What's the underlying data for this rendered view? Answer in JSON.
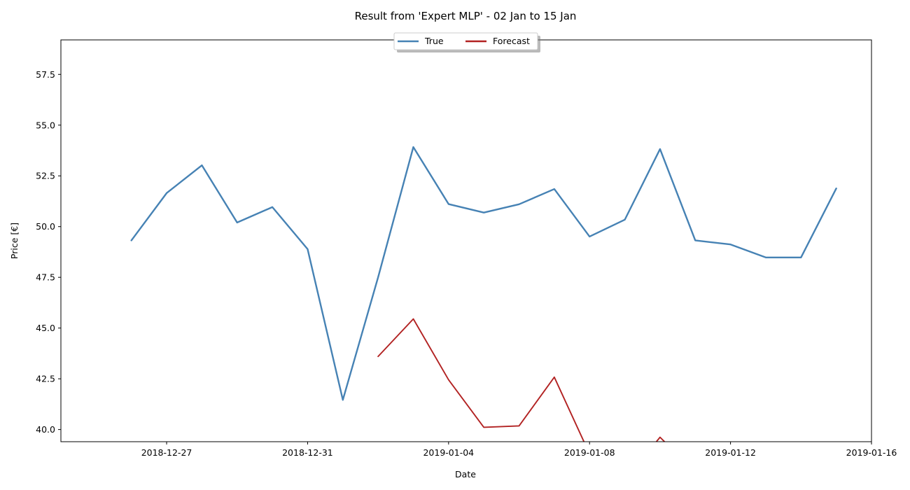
{
  "chart_data": {
    "type": "line",
    "title": "Result from 'Expert MLP' - 02 Jan to 15 Jan",
    "xlabel": "Date",
    "ylabel": "Price [€]",
    "xlim": [
      "2018-12-24",
      "2019-01-16"
    ],
    "ylim": [
      39.4,
      59.2
    ],
    "x_ticks": [
      "2018-12-27",
      "2018-12-31",
      "2019-01-04",
      "2019-01-08",
      "2019-01-12",
      "2019-01-16"
    ],
    "y_ticks": [
      40.0,
      42.5,
      45.0,
      47.5,
      50.0,
      52.5,
      55.0,
      57.5
    ],
    "grid": false,
    "legend": {
      "placement": "top-center",
      "columns": 2
    },
    "series": [
      {
        "name": "True",
        "color": "#4682b4",
        "x": [
          "2018-12-26",
          "2018-12-27",
          "2018-12-28",
          "2018-12-29",
          "2018-12-30",
          "2018-12-31",
          "2019-01-01",
          "2019-01-02",
          "2019-01-03",
          "2019-01-04",
          "2019-01-05",
          "2019-01-06",
          "2019-01-07",
          "2019-01-08",
          "2019-01-09",
          "2019-01-10",
          "2019-01-11",
          "2019-01-12",
          "2019-01-13",
          "2019-01-14",
          "2019-01-15"
        ],
        "values": [
          49.32,
          51.65,
          53.02,
          50.2,
          50.96,
          48.89,
          41.46,
          47.5,
          53.92,
          51.11,
          50.69,
          51.1,
          51.85,
          49.51,
          50.34,
          53.82,
          49.32,
          49.12,
          48.48,
          48.48,
          51.88
        ]
      },
      {
        "name": "Forecast",
        "color": "#b22222",
        "x": [
          "2019-01-02",
          "2019-01-03",
          "2019-01-04",
          "2019-01-05",
          "2019-01-06",
          "2019-01-07",
          "2019-01-08",
          "2019-01-09",
          "2019-01-10",
          "2019-01-11"
        ],
        "values": [
          43.6,
          45.45,
          42.45,
          40.11,
          40.18,
          42.58,
          38.8,
          37.5,
          39.62,
          37.9
        ]
      }
    ]
  }
}
